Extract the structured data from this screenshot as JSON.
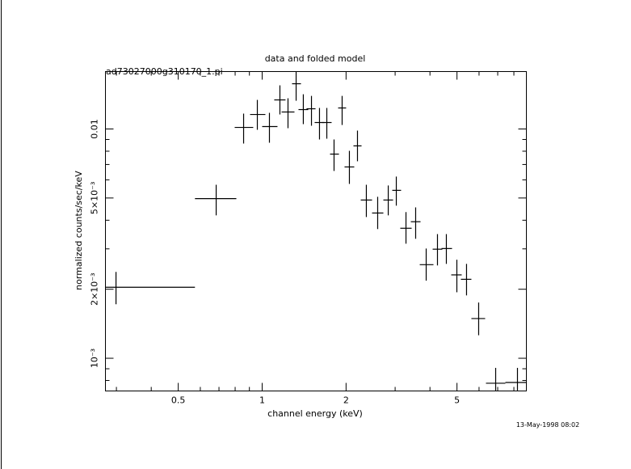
{
  "chart_data": {
    "type": "errorbar",
    "title": "data and folded model",
    "subtitle": "ad73027000g310170_1.pi",
    "xlabel": "channel energy (keV)",
    "ylabel": "normalized counts/sec/keV",
    "annotation": "13-May-1998 08:02",
    "xscale": "log",
    "yscale": "log",
    "xlim": [
      0.274,
      8.87
    ],
    "ylim": [
      0.00072,
      0.0178
    ],
    "xticks": [
      0.5,
      1,
      2,
      5
    ],
    "xminor_ticks": [
      0.3,
      0.4,
      0.6,
      0.7,
      0.8,
      0.9,
      3,
      4,
      6,
      7,
      8
    ],
    "yticks": [
      {
        "value": 0.001,
        "label": "10⁻³"
      },
      {
        "value": 0.002,
        "label": "2×10⁻³"
      },
      {
        "value": 0.005,
        "label": "5×10⁻³"
      },
      0.01
    ],
    "yminor_ticks": [
      0.0008,
      0.0009,
      0.003,
      0.004,
      0.006,
      0.007,
      0.008,
      0.009
    ],
    "color": "#000000",
    "x": [
      0.299,
      0.684,
      0.858,
      0.961,
      1.062,
      1.158,
      1.238,
      1.324,
      1.405,
      1.503,
      1.606,
      1.706,
      1.811,
      1.936,
      2.056,
      2.198,
      2.365,
      2.597,
      2.834,
      3.029,
      3.281,
      3.554,
      3.877,
      4.256,
      4.58,
      4.995,
      5.411,
      5.981,
      6.883,
      8.241
    ],
    "x_lo": [
      0.25,
      0.574,
      0.797,
      0.905,
      1.0,
      1.105,
      1.174,
      1.28,
      1.35,
      1.443,
      1.543,
      1.638,
      1.752,
      1.873,
      1.975,
      2.126,
      2.258,
      2.479,
      2.722,
      2.929,
      3.13,
      3.415,
      3.676,
      4.09,
      4.4,
      4.768,
      5.164,
      5.632,
      6.353,
      7.457
    ],
    "x_hi": [
      0.574,
      0.808,
      0.929,
      1.027,
      1.135,
      1.213,
      1.306,
      1.378,
      1.463,
      1.554,
      1.672,
      1.775,
      1.886,
      2.001,
      2.14,
      2.273,
      2.479,
      2.722,
      2.949,
      3.151,
      3.438,
      3.7,
      4.117,
      4.43,
      4.8,
      5.199,
      5.632,
      6.31,
      7.457,
      8.869
    ],
    "y": [
      0.00204,
      0.00497,
      0.01016,
      0.01157,
      0.01025,
      0.01339,
      0.01186,
      0.01575,
      0.01215,
      0.01225,
      0.01067,
      0.01067,
      0.00777,
      0.01235,
      0.00683,
      0.00844,
      0.0049,
      0.0043,
      0.0049,
      0.0054,
      0.00369,
      0.00394,
      0.00256,
      0.00299,
      0.00301,
      0.00231,
      0.00221,
      0.00149,
      0.000778,
      0.000784
    ],
    "y_lo": [
      0.00172,
      0.0042,
      0.00864,
      0.00992,
      0.00871,
      0.01157,
      0.01008,
      0.01328,
      0.0105,
      0.01033,
      0.009,
      0.00907,
      0.00656,
      0.01041,
      0.00576,
      0.00723,
      0.00413,
      0.00366,
      0.0042,
      0.00463,
      0.00316,
      0.00332,
      0.00218,
      0.00254,
      0.00258,
      0.00194,
      0.00188,
      0.00126,
      0.0007,
      0.0007
    ],
    "y_hi": [
      0.00238,
      0.00571,
      0.01167,
      0.01339,
      0.01176,
      0.0155,
      0.01361,
      0.01778,
      0.01417,
      0.01394,
      0.01235,
      0.01235,
      0.009,
      0.01394,
      0.00803,
      0.00984,
      0.00571,
      0.00506,
      0.00567,
      0.0062,
      0.00434,
      0.00455,
      0.00301,
      0.00348,
      0.00348,
      0.00269,
      0.00258,
      0.00175,
      0.000908,
      0.000908
    ]
  }
}
